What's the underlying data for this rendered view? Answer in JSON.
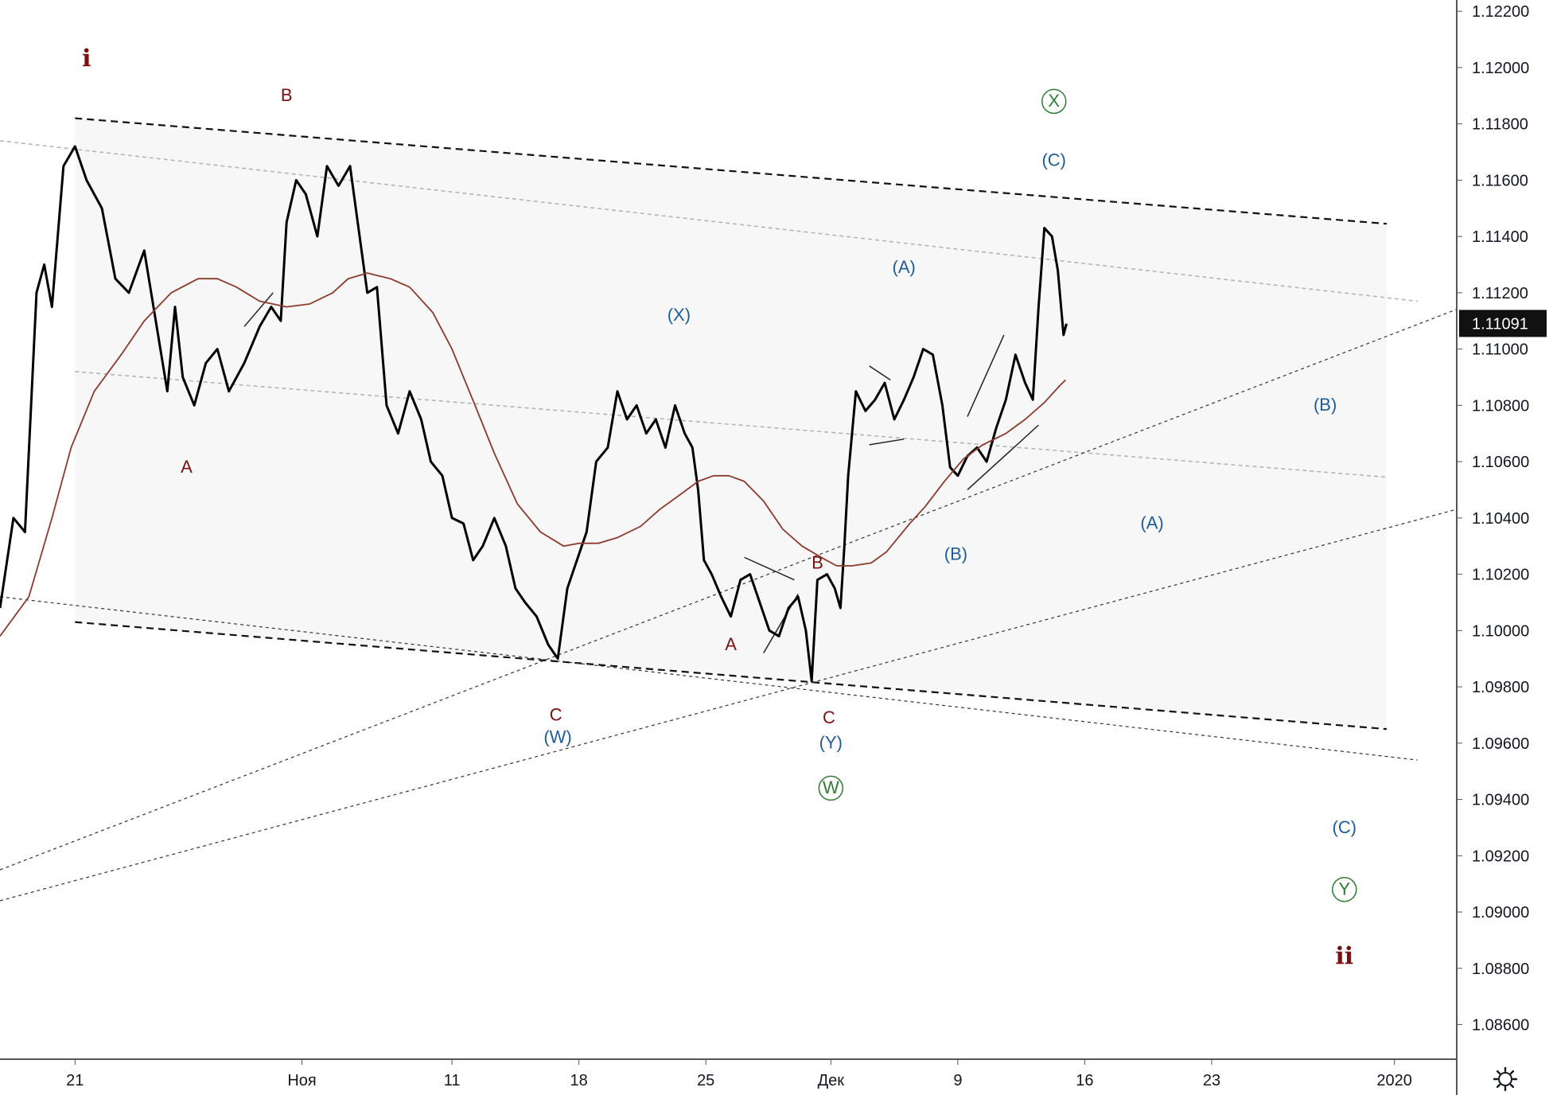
{
  "chart_data": {
    "type": "line",
    "title": "",
    "xlabel": "",
    "ylabel": "",
    "ylim": [
      1.0848,
      1.1224
    ],
    "xlim": [
      -0.7,
      75.0
    ],
    "y_ticks": [
      {
        "value": 1.122,
        "label": "1.12200"
      },
      {
        "value": 1.12,
        "label": "1.12000"
      },
      {
        "value": 1.118,
        "label": "1.11800"
      },
      {
        "value": 1.116,
        "label": "1.11600"
      },
      {
        "value": 1.114,
        "label": "1.11400"
      },
      {
        "value": 1.112,
        "label": "1.11200"
      },
      {
        "value": 1.11,
        "label": "1.11000"
      },
      {
        "value": 1.108,
        "label": "1.10800"
      },
      {
        "value": 1.106,
        "label": "1.10600"
      },
      {
        "value": 1.104,
        "label": "1.10400"
      },
      {
        "value": 1.102,
        "label": "1.10200"
      },
      {
        "value": 1.1,
        "label": "1.10000"
      },
      {
        "value": 1.098,
        "label": "1.09800"
      },
      {
        "value": 1.096,
        "label": "1.09600"
      },
      {
        "value": 1.094,
        "label": "1.09400"
      },
      {
        "value": 1.092,
        "label": "1.09200"
      },
      {
        "value": 1.09,
        "label": "1.09000"
      },
      {
        "value": 1.088,
        "label": "1.08800"
      },
      {
        "value": 1.086,
        "label": "1.08600"
      }
    ],
    "x_ticks": [
      {
        "x": 3.2,
        "label": "21"
      },
      {
        "x": 15.0,
        "label": "Ноя"
      },
      {
        "x": 22.8,
        "label": "11"
      },
      {
        "x": 29.4,
        "label": "18"
      },
      {
        "x": 36.0,
        "label": "25"
      },
      {
        "x": 42.5,
        "label": "Дек"
      },
      {
        "x": 49.1,
        "label": "9"
      },
      {
        "x": 55.7,
        "label": "16"
      },
      {
        "x": 62.3,
        "label": "23"
      },
      {
        "x": 71.8,
        "label": "2020"
      }
    ],
    "last_price": {
      "value": 1.11091,
      "label": "1.11091"
    },
    "series": [
      {
        "type": "line",
        "color": "#000000",
        "points": [
          [
            -0.7,
            1.1008
          ],
          [
            0.0,
            1.104
          ],
          [
            0.6,
            1.1035
          ],
          [
            1.2,
            1.112
          ],
          [
            1.6,
            1.113
          ],
          [
            2.0,
            1.1115
          ],
          [
            2.6,
            1.1165
          ],
          [
            3.2,
            1.1172
          ],
          [
            3.8,
            1.116
          ],
          [
            4.6,
            1.115
          ],
          [
            5.3,
            1.1125
          ],
          [
            6.0,
            1.112
          ],
          [
            6.8,
            1.1135
          ],
          [
            7.4,
            1.111
          ],
          [
            8.0,
            1.1085
          ],
          [
            8.4,
            1.1115
          ],
          [
            8.8,
            1.109
          ],
          [
            9.4,
            1.108
          ],
          [
            10.0,
            1.1095
          ],
          [
            10.6,
            1.11
          ],
          [
            11.2,
            1.1085
          ],
          [
            12.0,
            1.1095
          ],
          [
            12.8,
            1.1108
          ],
          [
            13.4,
            1.1115
          ],
          [
            13.9,
            1.111
          ],
          [
            14.2,
            1.1145
          ],
          [
            14.7,
            1.116
          ],
          [
            15.2,
            1.1155
          ],
          [
            15.8,
            1.114
          ],
          [
            16.3,
            1.1165
          ],
          [
            16.9,
            1.1158
          ],
          [
            17.5,
            1.1165
          ],
          [
            17.9,
            1.1145
          ],
          [
            18.4,
            1.112
          ],
          [
            18.9,
            1.1122
          ],
          [
            19.4,
            1.108
          ],
          [
            20.0,
            1.107
          ],
          [
            20.6,
            1.1085
          ],
          [
            21.2,
            1.1075
          ],
          [
            21.7,
            1.106
          ],
          [
            22.3,
            1.1055
          ],
          [
            22.8,
            1.104
          ],
          [
            23.4,
            1.1038
          ],
          [
            23.9,
            1.1025
          ],
          [
            24.4,
            1.103
          ],
          [
            25.0,
            1.104
          ],
          [
            25.6,
            1.103
          ],
          [
            26.1,
            1.1015
          ],
          [
            26.6,
            1.101
          ],
          [
            27.2,
            1.1005
          ],
          [
            27.8,
            1.0995
          ],
          [
            28.3,
            1.099
          ],
          [
            28.8,
            1.1015
          ],
          [
            29.3,
            1.1025
          ],
          [
            29.8,
            1.1035
          ],
          [
            30.3,
            1.106
          ],
          [
            30.9,
            1.1065
          ],
          [
            31.4,
            1.1085
          ],
          [
            31.9,
            1.1075
          ],
          [
            32.4,
            1.108
          ],
          [
            32.9,
            1.107
          ],
          [
            33.4,
            1.1075
          ],
          [
            33.9,
            1.1065
          ],
          [
            34.4,
            1.108
          ],
          [
            34.9,
            1.107
          ],
          [
            35.3,
            1.1065
          ],
          [
            35.6,
            1.105
          ],
          [
            35.9,
            1.1025
          ],
          [
            36.3,
            1.102
          ],
          [
            36.8,
            1.1012
          ],
          [
            37.3,
            1.1005
          ],
          [
            37.8,
            1.1018
          ],
          [
            38.3,
            1.102
          ],
          [
            38.8,
            1.101
          ],
          [
            39.3,
            1.1
          ],
          [
            39.8,
            1.0998
          ],
          [
            40.3,
            1.1008
          ],
          [
            40.8,
            1.1012
          ],
          [
            41.2,
            1.1
          ],
          [
            41.5,
            1.0982
          ],
          [
            41.8,
            1.1018
          ],
          [
            42.3,
            1.102
          ],
          [
            42.7,
            1.1015
          ],
          [
            43.0,
            1.1008
          ],
          [
            43.2,
            1.103
          ],
          [
            43.4,
            1.1055
          ],
          [
            43.8,
            1.1085
          ],
          [
            44.3,
            1.1078
          ],
          [
            44.8,
            1.1082
          ],
          [
            45.3,
            1.1088
          ],
          [
            45.8,
            1.1075
          ],
          [
            46.3,
            1.1082
          ],
          [
            46.8,
            1.109
          ],
          [
            47.3,
            1.11
          ],
          [
            47.8,
            1.1098
          ],
          [
            48.3,
            1.108
          ],
          [
            48.7,
            1.1058
          ],
          [
            49.1,
            1.1055
          ],
          [
            49.6,
            1.1062
          ],
          [
            50.1,
            1.1065
          ],
          [
            50.6,
            1.106
          ],
          [
            51.1,
            1.1072
          ],
          [
            51.6,
            1.1082
          ],
          [
            52.1,
            1.1098
          ],
          [
            52.6,
            1.1088
          ],
          [
            53.0,
            1.1082
          ],
          [
            53.3,
            1.1115
          ],
          [
            53.6,
            1.1143
          ],
          [
            54.0,
            1.114
          ],
          [
            54.3,
            1.1128
          ],
          [
            54.6,
            1.1105
          ],
          [
            54.75,
            1.1109
          ]
        ]
      },
      {
        "type": "line",
        "color": "#8b3a2b",
        "points": [
          [
            -0.7,
            1.0998
          ],
          [
            0.8,
            1.1012
          ],
          [
            2.0,
            1.104
          ],
          [
            3.0,
            1.1065
          ],
          [
            4.2,
            1.1085
          ],
          [
            5.6,
            1.1098
          ],
          [
            6.8,
            1.111
          ],
          [
            8.2,
            1.112
          ],
          [
            9.6,
            1.1125
          ],
          [
            10.6,
            1.1125
          ],
          [
            11.6,
            1.1122
          ],
          [
            12.8,
            1.1117
          ],
          [
            14.2,
            1.1115
          ],
          [
            15.4,
            1.1116
          ],
          [
            16.6,
            1.112
          ],
          [
            17.4,
            1.1125
          ],
          [
            18.4,
            1.1127
          ],
          [
            19.6,
            1.1125
          ],
          [
            20.6,
            1.1122
          ],
          [
            21.8,
            1.1113
          ],
          [
            22.8,
            1.11
          ],
          [
            24.0,
            1.108
          ],
          [
            25.0,
            1.1063
          ],
          [
            26.2,
            1.1045
          ],
          [
            27.4,
            1.1035
          ],
          [
            28.6,
            1.103
          ],
          [
            29.4,
            1.1031
          ],
          [
            30.4,
            1.1031
          ],
          [
            31.4,
            1.1033
          ],
          [
            32.6,
            1.1037
          ],
          [
            33.6,
            1.1043
          ],
          [
            34.6,
            1.1048
          ],
          [
            35.6,
            1.1053
          ],
          [
            36.4,
            1.1055
          ],
          [
            37.2,
            1.1055
          ],
          [
            38.0,
            1.1053
          ],
          [
            39.0,
            1.1046
          ],
          [
            40.0,
            1.1036
          ],
          [
            41.0,
            1.103
          ],
          [
            42.0,
            1.1026
          ],
          [
            42.8,
            1.1023
          ],
          [
            43.6,
            1.1023
          ],
          [
            44.6,
            1.1024
          ],
          [
            45.4,
            1.1028
          ],
          [
            46.6,
            1.1038
          ],
          [
            47.4,
            1.1044
          ],
          [
            48.4,
            1.1053
          ],
          [
            49.4,
            1.1061
          ],
          [
            50.4,
            1.1066
          ],
          [
            51.6,
            1.107
          ],
          [
            52.6,
            1.1075
          ],
          [
            53.6,
            1.1081
          ],
          [
            54.4,
            1.1087
          ],
          [
            54.7,
            1.1089
          ]
        ]
      }
    ],
    "trendlines": [
      {
        "style": "dashed-bold",
        "from": [
          3.2,
          1.1182
        ],
        "to": [
          71.4,
          1.11445
        ]
      },
      {
        "style": "dashed-bold",
        "from": [
          3.2,
          1.1003
        ],
        "to": [
          71.4,
          1.0965
        ]
      },
      {
        "style": "dotted-grey",
        "from": [
          -0.7,
          1.1174
        ],
        "to": [
          73.0,
          1.1117
        ]
      },
      {
        "style": "dotted-grey",
        "from": [
          3.2,
          1.1092
        ],
        "to": [
          71.4,
          1.10545
        ]
      },
      {
        "style": "dotted-fine",
        "from": [
          -0.7,
          1.1012
        ],
        "to": [
          73.0,
          1.0954
        ]
      },
      {
        "style": "dotted-fine",
        "from": [
          -0.7,
          1.0915
        ],
        "to": [
          75.0,
          1.1114
        ]
      },
      {
        "style": "dotted-fine",
        "from": [
          -0.7,
          1.0904
        ],
        "to": [
          75.0,
          1.1043
        ]
      }
    ],
    "pattern_lines": [
      [
        [
          12.0,
          1.1108
        ],
        [
          13.5,
          1.112
        ]
      ],
      [
        [
          38.0,
          1.1026
        ],
        [
          40.6,
          1.1018
        ]
      ],
      [
        [
          39.0,
          1.0992
        ],
        [
          40.8,
          1.1013
        ]
      ],
      [
        [
          44.5,
          1.1094
        ],
        [
          45.6,
          1.1089
        ]
      ],
      [
        [
          44.5,
          1.1066
        ],
        [
          46.3,
          1.1068
        ]
      ],
      [
        [
          49.6,
          1.1076
        ],
        [
          51.5,
          1.1105
        ]
      ],
      [
        [
          49.6,
          1.105
        ],
        [
          53.3,
          1.1073
        ]
      ]
    ],
    "wave_labels": [
      {
        "text": "i",
        "x": 3.8,
        "y": 1.1203,
        "color": "#7a1111",
        "size": "big"
      },
      {
        "text": "B",
        "x": 14.2,
        "y": 1.119,
        "color": "#7a1111"
      },
      {
        "text": "A",
        "x": 9.0,
        "y": 1.1058,
        "color": "#7a1111"
      },
      {
        "text": "C",
        "x": 28.2,
        "y": 1.097,
        "color": "#7a1111"
      },
      {
        "text": "(W)",
        "x": 28.3,
        "y": 1.0962,
        "color": "#1f5c99"
      },
      {
        "text": "(X)",
        "x": 34.6,
        "y": 1.1112,
        "color": "#1f5c99"
      },
      {
        "text": "A",
        "x": 37.3,
        "y": 1.0995,
        "color": "#7a1111"
      },
      {
        "text": "B",
        "x": 41.8,
        "y": 1.1024,
        "color": "#7a1111"
      },
      {
        "text": "C",
        "x": 42.4,
        "y": 1.0969,
        "color": "#7a1111"
      },
      {
        "text": "(Y)",
        "x": 42.5,
        "y": 1.096,
        "color": "#1f5c99"
      },
      {
        "text": "W",
        "x": 42.5,
        "y": 1.0944,
        "color": "#2e7d32",
        "circle": true
      },
      {
        "text": "(A)",
        "x": 46.3,
        "y": 1.1129,
        "color": "#1f5c99"
      },
      {
        "text": "(B)",
        "x": 49.0,
        "y": 1.1027,
        "color": "#1f5c99"
      },
      {
        "text": "(C)",
        "x": 54.1,
        "y": 1.1167,
        "color": "#1f5c99"
      },
      {
        "text": "X",
        "x": 54.1,
        "y": 1.1188,
        "color": "#2e7d32",
        "circle": true
      },
      {
        "text": "(B)",
        "x": 68.2,
        "y": 1.108,
        "color": "#1f5c99"
      },
      {
        "text": "(A)",
        "x": 59.2,
        "y": 1.1038,
        "color": "#1f5c99"
      },
      {
        "text": "(C)",
        "x": 69.2,
        "y": 1.093,
        "color": "#1f5c99"
      },
      {
        "text": "Y",
        "x": 69.2,
        "y": 1.0908,
        "color": "#2e7d32",
        "circle": true
      },
      {
        "text": "ii",
        "x": 69.2,
        "y": 1.0884,
        "color": "#7a1111",
        "size": "big"
      }
    ],
    "settings_icon": "gear-icon"
  }
}
